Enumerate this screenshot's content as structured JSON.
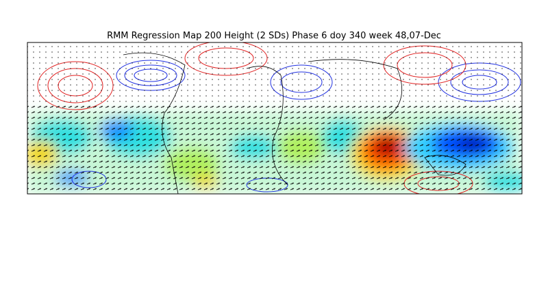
{
  "map": {
    "title": "RMM Regression Map 200 Height (2 SDs) Phase 6 doy 340 week 48,07-Dec"
  }
}
